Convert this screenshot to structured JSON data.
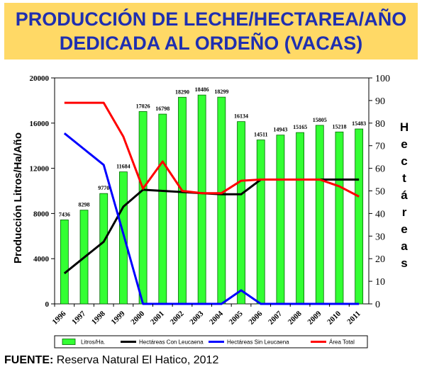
{
  "title": {
    "line1": "PRODUCCIÓN DE LECHE/HECTAREA/AÑO",
    "line2": "DEDICADA AL ORDEÑO (VACAS)"
  },
  "source": {
    "label": "FUENTE:",
    "text": "Reserva Natural El Hatico, 2012"
  },
  "colors": {
    "banner": "#ffd966",
    "title_text": "#1f2fb0",
    "bar_fill": "#33ff33",
    "bar_stroke": "#006600",
    "plot_bg": "#ffffff",
    "con_leucaena": "#000000",
    "sin_leucaena": "#0000ff",
    "area_total": "#ff0000"
  },
  "chart_data": {
    "type": "bar",
    "categories": [
      "1996",
      "1997",
      "1998",
      "1999",
      "2000",
      "2001",
      "2002",
      "2003",
      "2004",
      "2005",
      "2006",
      "2007",
      "2008",
      "2009",
      "2010",
      "2011"
    ],
    "ylabel": "Producción Litros/Ha/Año",
    "y2label": "Hectáreas",
    "ylim": [
      0,
      20000
    ],
    "yticks": [
      0,
      4000,
      8000,
      12000,
      16000,
      20000
    ],
    "y2lim": [
      0,
      100
    ],
    "y2ticks": [
      0,
      10,
      20,
      30,
      40,
      50,
      60,
      70,
      80,
      90,
      100
    ],
    "grid": false,
    "legend_position": "bottom",
    "series": [
      {
        "name": "Litros/Ha.",
        "type": "bar",
        "axis": "left",
        "values": [
          7436,
          8298,
          9770,
          11684,
          17026,
          16798,
          18290,
          18486,
          18299,
          16134,
          14511,
          14943,
          15165,
          15805,
          15218,
          15483
        ],
        "labels": [
          "7436",
          "8298",
          "9770",
          "11684",
          "17026",
          "16798",
          "18290",
          "18486",
          "18299",
          "16134",
          "14511",
          "14943",
          "15165",
          "15805",
          "15218",
          "15483"
        ]
      },
      {
        "name": "Hectáreas Con Leucaena",
        "type": "line",
        "axis": "right",
        "values": [
          13.5,
          20.5,
          27.5,
          43,
          50.5,
          null,
          null,
          null,
          48.5,
          48.5,
          55,
          null,
          null,
          null,
          null,
          null
        ]
      },
      {
        "name": "Hectáreas Sin Leucaena",
        "type": "line",
        "axis": "right",
        "values": [
          75.5,
          68.5,
          61.5,
          31,
          0,
          null,
          null,
          null,
          0,
          6,
          0,
          null,
          null,
          null,
          null,
          0
        ]
      },
      {
        "name": "Área Total",
        "type": "line",
        "axis": "right",
        "values": [
          89,
          89,
          89,
          74,
          51,
          63,
          50,
          49,
          49,
          54.5,
          55,
          55,
          55,
          55,
          52,
          47.5
        ]
      }
    ]
  }
}
